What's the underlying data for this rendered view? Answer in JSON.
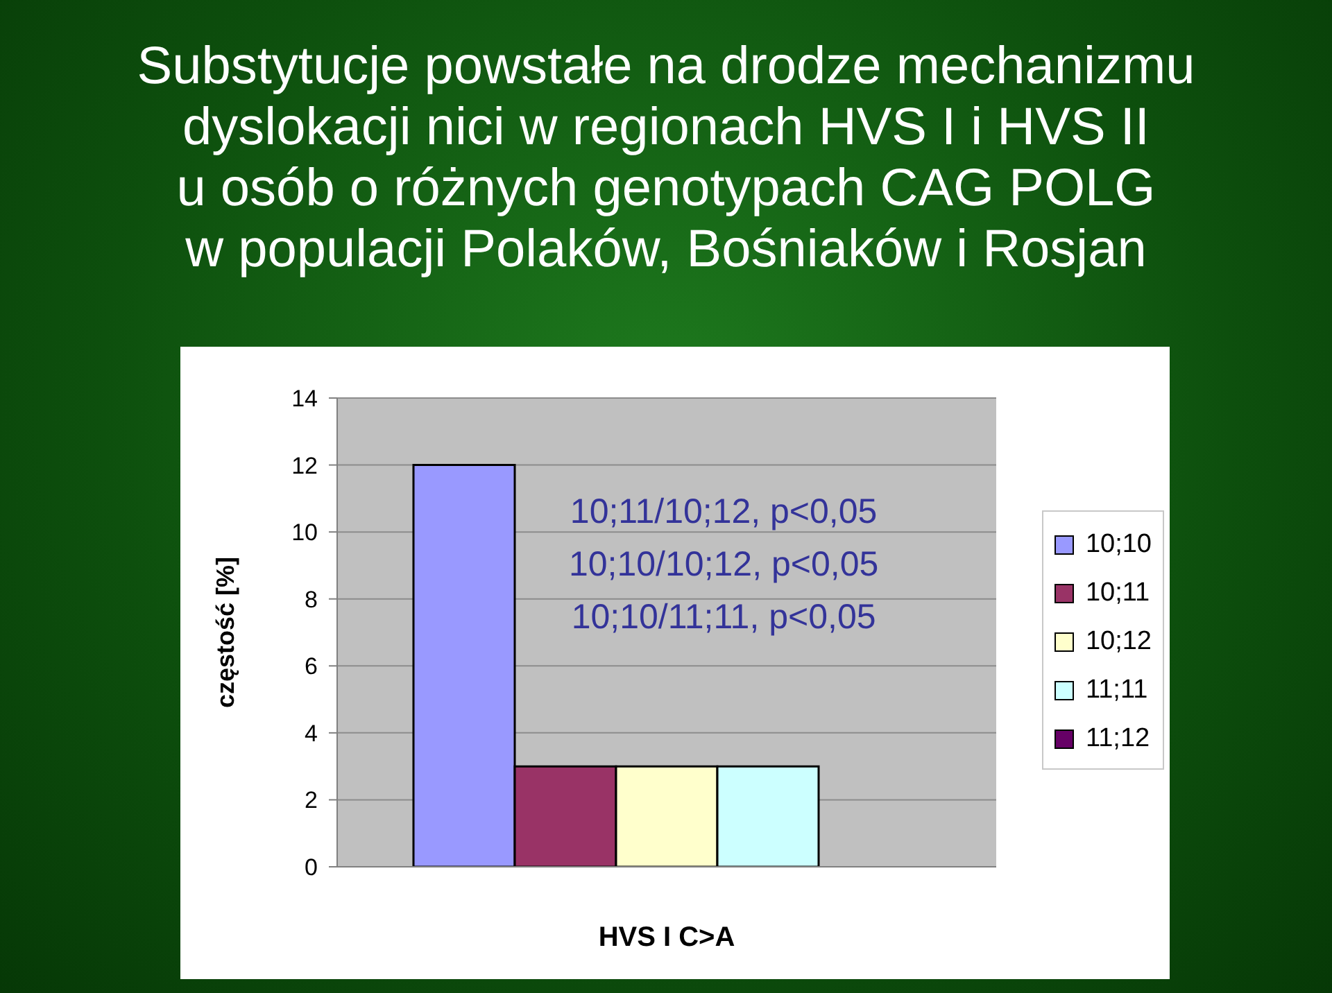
{
  "chart_data": {
    "type": "bar",
    "title": "Substytucje powstałe na drodze mechanizmu\ndyslokacji nici w regionach HVS I i HVS II\nu osób o różnych genotypach CAG POLG\nw populacji Polaków, Bośniaków i Rosjan",
    "xlabel": "HVS I C>A",
    "ylabel": "częstość [%]",
    "categories": [
      null
    ],
    "series": [
      {
        "name": "10;10",
        "color": "#9999ff",
        "values": [
          12
        ]
      },
      {
        "name": "10;11",
        "color": "#993366",
        "values": [
          3
        ]
      },
      {
        "name": "10;12",
        "color": "#ffffcc",
        "values": [
          3
        ]
      },
      {
        "name": "11;11",
        "color": "#ccffff",
        "values": [
          3
        ]
      },
      {
        "name": "11;12",
        "color": "#660066",
        "values": [
          0
        ]
      }
    ],
    "ylim": [
      0,
      14
    ],
    "yticks": [
      0,
      2,
      4,
      6,
      8,
      10,
      12,
      14
    ],
    "grid": "y",
    "legend": "right",
    "annotations": [
      "10;11/10;12, p<0,05",
      "10;10/10;12, p<0,05",
      "10;10/11;11, p<0,05"
    ]
  }
}
